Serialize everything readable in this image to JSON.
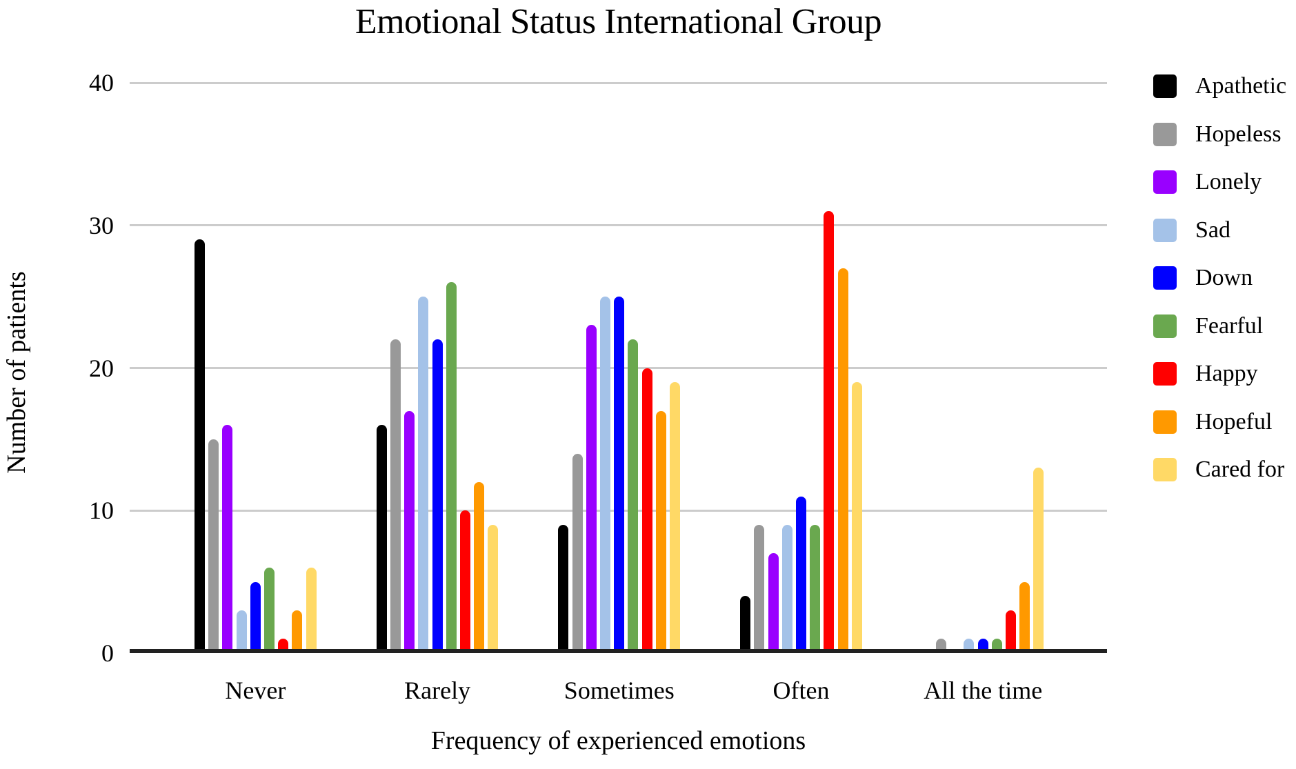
{
  "title": "Emotional Status International Group",
  "chart_data": {
    "type": "bar",
    "title": "Emotional Status International Group",
    "xlabel": "Frequency of experienced emotions",
    "ylabel": "Number of patients",
    "categories": [
      "Never",
      "Rarely",
      "Sometimes",
      "Often",
      "All the time"
    ],
    "series": [
      {
        "name": "Apathetic",
        "color": "#000000",
        "values": [
          29,
          16,
          9,
          4,
          0
        ]
      },
      {
        "name": "Hopeless",
        "color": "#999999",
        "values": [
          15,
          22,
          14,
          9,
          1
        ]
      },
      {
        "name": "Lonely",
        "color": "#9900ff",
        "values": [
          16,
          17,
          23,
          7,
          0
        ]
      },
      {
        "name": "Sad",
        "color": "#a4c2e8",
        "values": [
          3,
          25,
          25,
          9,
          1
        ]
      },
      {
        "name": "Down",
        "color": "#0000ff",
        "values": [
          5,
          22,
          25,
          11,
          1
        ]
      },
      {
        "name": "Fearful",
        "color": "#6aa84f",
        "values": [
          6,
          26,
          22,
          9,
          1
        ]
      },
      {
        "name": "Happy",
        "color": "#ff0000",
        "values": [
          1,
          10,
          20,
          31,
          3
        ]
      },
      {
        "name": "Hopeful",
        "color": "#ff9900",
        "values": [
          3,
          12,
          17,
          27,
          5
        ]
      },
      {
        "name": "Cared for",
        "color": "#ffd966",
        "values": [
          6,
          9,
          19,
          19,
          13
        ]
      }
    ],
    "yticks": [
      0,
      10,
      20,
      30,
      40
    ],
    "ylim": [
      0,
      40
    ],
    "grid": "horizontal",
    "legend_position": "right",
    "colors": {
      "background": "#ffffff",
      "gridline": "#cccccc",
      "axis": "#212121",
      "text": "#000000"
    }
  }
}
